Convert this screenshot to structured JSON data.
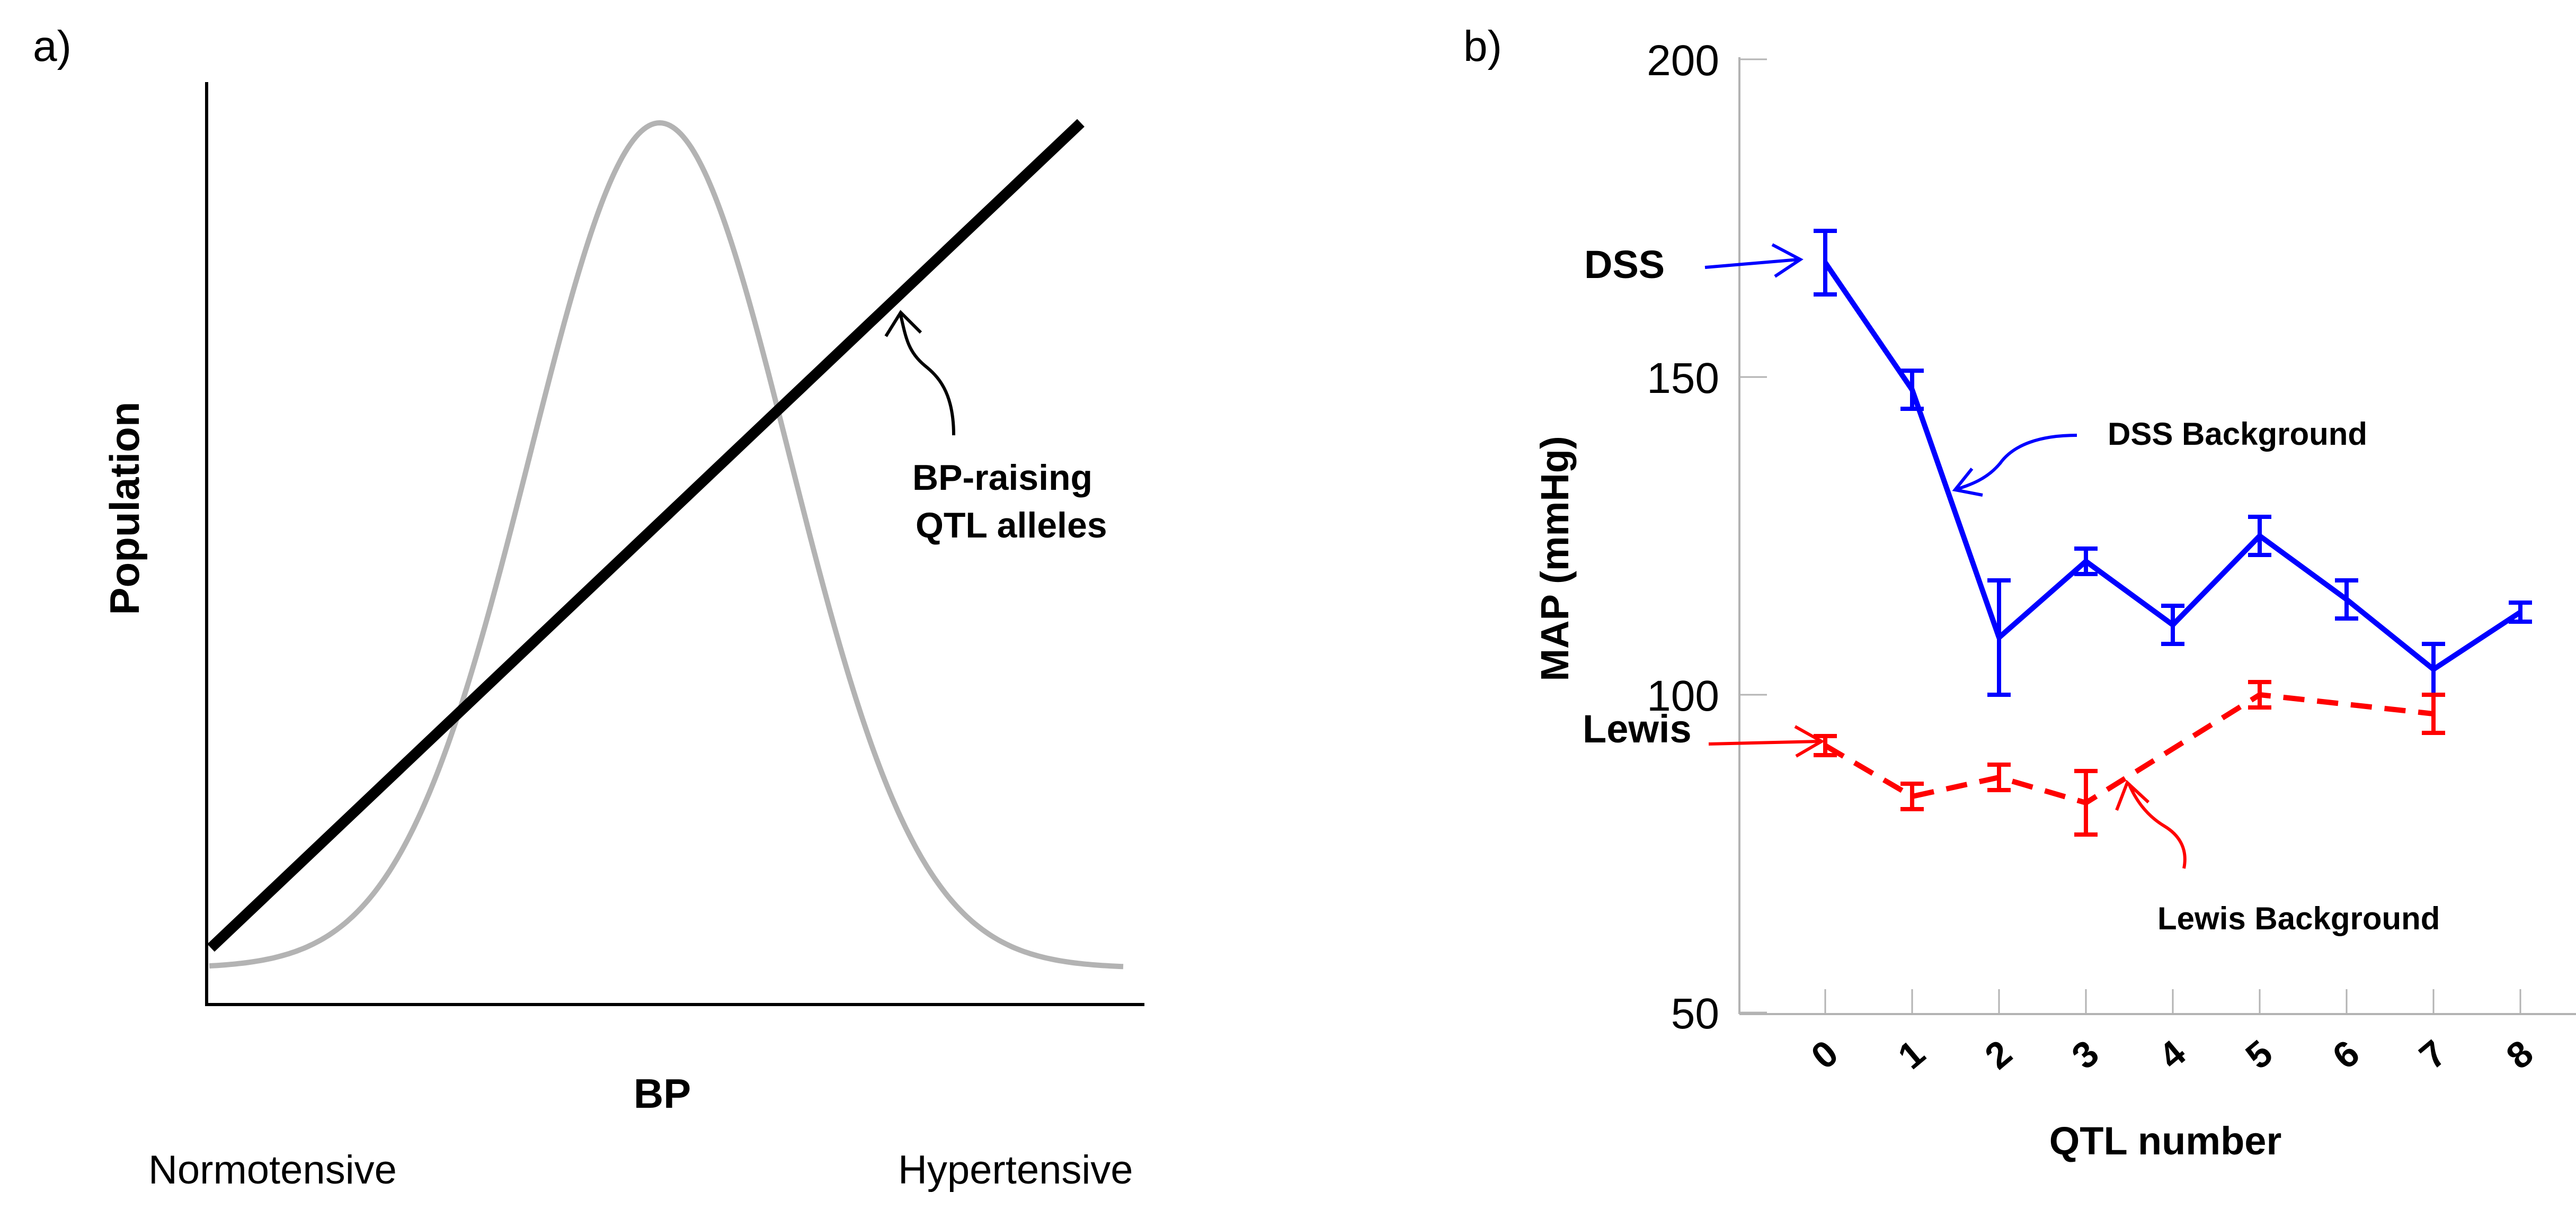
{
  "panel_a": {
    "label": "a)",
    "ylabel": "Population",
    "xlabel": "BP",
    "x_left_label": "Normotensive",
    "x_right_label": "Hypertensive",
    "annotation_line1": "BP-raising",
    "annotation_line2": "QTL alleles",
    "curve_color": "#b3b3b3",
    "line_color": "#000000"
  },
  "panel_b": {
    "label": "b)",
    "ylabel": "MAP (mmHg)",
    "xlabel": "QTL number",
    "dss_label": "DSS",
    "lewis_label": "Lewis",
    "dss_background_label": "DSS Background",
    "lewis_background_label": "Lewis Background"
  },
  "chart_data": [
    {
      "type": "line",
      "description_kind": "schematic",
      "series": [
        {
          "shape": "gaussian-bell-curve"
        },
        {
          "shape": "straight-increasing-line"
        }
      ]
    },
    {
      "type": "line",
      "xlabel": "QTL number",
      "ylabel": "MAP (mmHg)",
      "ylim": [
        50,
        200
      ],
      "yticks": [
        50,
        100,
        150,
        200
      ],
      "categories": [
        "0",
        "1",
        "2",
        "3",
        "4",
        "5",
        "6",
        "7",
        "8"
      ],
      "series": [
        {
          "name": "DSS Background",
          "color": "#0000ff",
          "line_style": "solid",
          "x": [
            0,
            1,
            2,
            3,
            4,
            5,
            6,
            7,
            8
          ],
          "values": [
            168,
            148,
            109,
            121,
            111,
            125,
            115,
            104,
            113
          ],
          "error": [
            5,
            3,
            9,
            2,
            3,
            3,
            3,
            4,
            1.5
          ]
        },
        {
          "name": "Lewis Background",
          "color": "#ff0000",
          "line_style": "dashed",
          "x": [
            0,
            1,
            2,
            3,
            5,
            7
          ],
          "values": [
            92,
            84,
            87,
            83,
            100,
            97
          ],
          "error": [
            1.5,
            2,
            2,
            5,
            2,
            3
          ]
        }
      ]
    }
  ]
}
